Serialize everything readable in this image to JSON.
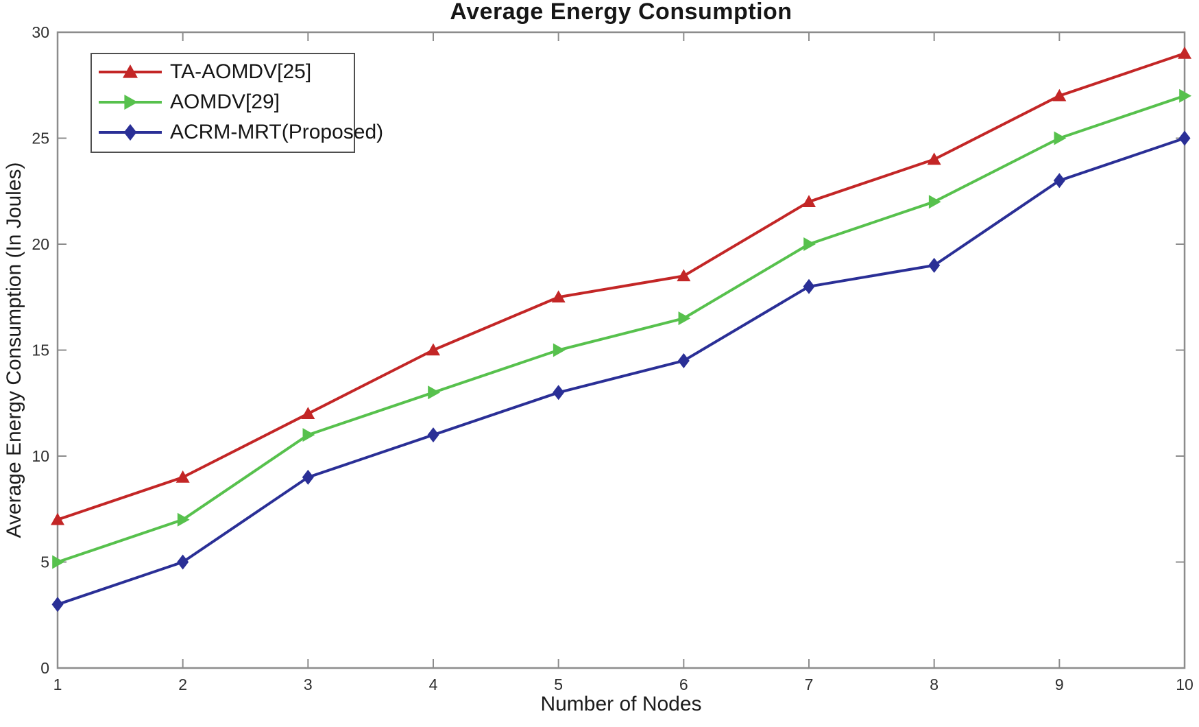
{
  "chart_data": {
    "type": "line",
    "title": "Average Energy Consumption",
    "xlabel": "Number of Nodes",
    "ylabel": "Average Energy Consumption (In Joules)",
    "xlim": [
      1,
      10
    ],
    "ylim": [
      0,
      30
    ],
    "x_ticks": [
      1,
      2,
      3,
      4,
      5,
      6,
      7,
      8,
      9,
      10
    ],
    "y_ticks": [
      0,
      5,
      10,
      15,
      20,
      25,
      30
    ],
    "grid": false,
    "legend_position": "top-left",
    "box": true,
    "axis_color": "#8c8c8c",
    "tick_label_color": "#2e2e2e",
    "x": [
      1,
      2,
      3,
      4,
      5,
      6,
      7,
      8,
      9,
      10
    ],
    "series": [
      {
        "name": "TA-AOMDV[25]",
        "color": "#c32626",
        "marker": "triangle-up",
        "values": [
          7,
          9,
          12,
          15,
          17.5,
          18.5,
          22,
          24,
          27,
          29
        ]
      },
      {
        "name": "AOMDV[29]",
        "color": "#57c14d",
        "marker": "triangle-right",
        "values": [
          5,
          7,
          11,
          13,
          15,
          16.5,
          20,
          22,
          25,
          27
        ]
      },
      {
        "name": "ACRM-MRT(Proposed)",
        "color": "#2a2f96",
        "marker": "diamond",
        "values": [
          3,
          5,
          9,
          11,
          13,
          14.5,
          18,
          19,
          23,
          25
        ]
      }
    ]
  }
}
